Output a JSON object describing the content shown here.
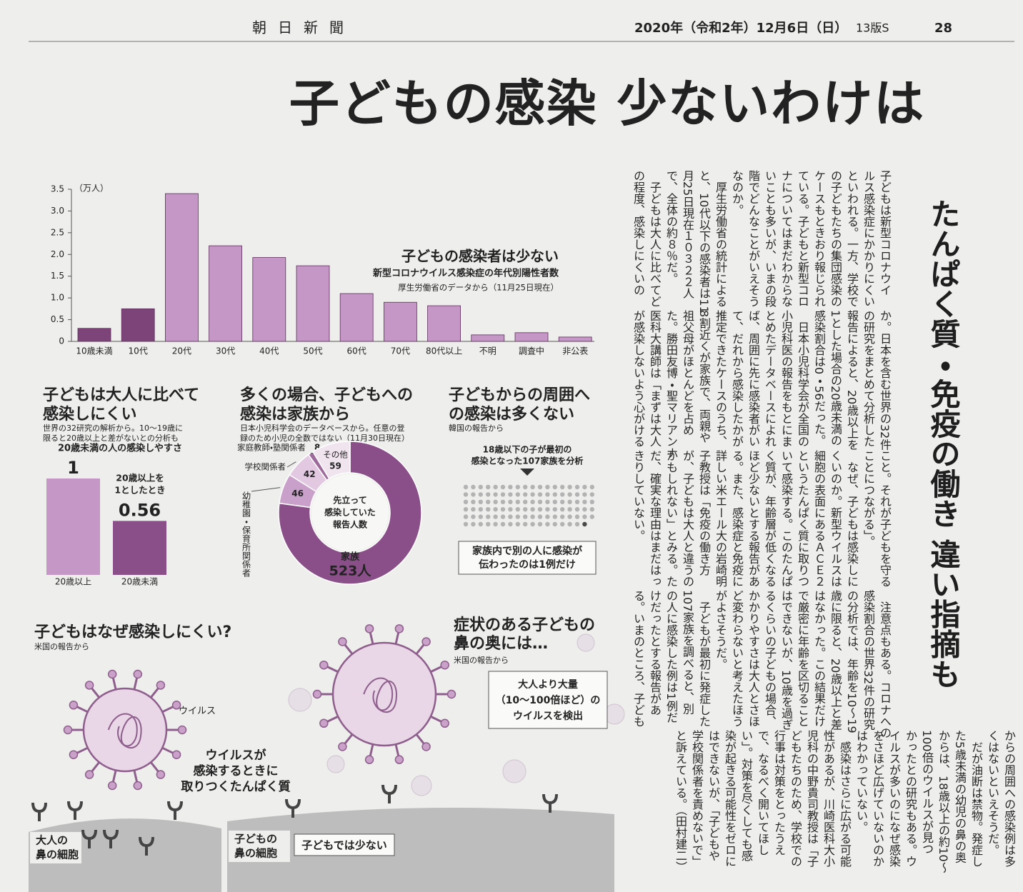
{
  "header": {
    "paper": "朝日新聞",
    "date": "2020年（令和2年）12月6日（日）",
    "edition": "13版S",
    "page": "28"
  },
  "headline": "子どもの感染 少ないわけは",
  "subheadline": "たんぱく質・免疫の働き 違い指摘も",
  "age_chart": {
    "type": "bar",
    "title": "子どもの感染者は少ない",
    "subtitle": "新型コロナウイルス感染症の年代別陽性者数",
    "source": "厚生労働省のデータから（11月25日現在）",
    "unit": "（万人）",
    "categories": [
      "10歳未満",
      "10代",
      "20代",
      "30代",
      "40代",
      "50代",
      "60代",
      "70代",
      "80代以上",
      "不明",
      "調査中",
      "非公表"
    ],
    "values": [
      0.3,
      0.75,
      3.4,
      2.2,
      1.93,
      1.74,
      1.1,
      0.9,
      0.82,
      0.15,
      0.2,
      0.1
    ],
    "colors": [
      "#7d4479",
      "#7d4479",
      "#c597c6",
      "#c597c6",
      "#c597c6",
      "#c597c6",
      "#c597c6",
      "#c597c6",
      "#c597c6",
      "#c597c6",
      "#c597c6",
      "#c597c6"
    ],
    "ylim": [
      0,
      3.5
    ],
    "yticks": [
      0,
      0.5,
      {
        "value": 1,
        "label": "1.0"
      },
      1.5,
      {
        "value": 2,
        "label": "2.0"
      },
      2.5,
      {
        "value": 3,
        "label": "3.0"
      },
      3.5
    ]
  },
  "ratio_chart": {
    "type": "bar",
    "title": [
      "子どもは大人に比べて",
      "感染しにくい"
    ],
    "note": [
      "世界の32研究の解析から。10～19歳に",
      "限ると20歳以上と差がないとの分析も"
    ],
    "subtitle": "20歳未満の人の感染しやすさ",
    "annotation": [
      "20歳以上を",
      "1としたとき"
    ],
    "categories": [
      "20歳以上",
      "20歳未満"
    ],
    "values": [
      1,
      0.56
    ],
    "colors": [
      "#c597c6",
      "#8a4f88"
    ],
    "ylim": [
      0,
      1
    ]
  },
  "source_chart": {
    "type": "pie",
    "title": [
      "多くの場合、子どもへの",
      "感染は家族から"
    ],
    "note": [
      "日本小児科学会のデータベースから。任意の登",
      "録のため小児の全数ではない（11月30日現在）"
    ],
    "center_label": [
      "先立って",
      "感染していた",
      "報告人数"
    ],
    "categories": [
      "家族",
      "幼稚園・保育所関係者",
      "学校関係者",
      "家庭教師・塾関係者",
      "その他"
    ],
    "values": [
      523,
      46,
      42,
      8,
      59
    ],
    "value_labels": [
      "523人",
      "46",
      "42",
      "8",
      "59"
    ],
    "colors": [
      "#8a4f88",
      "#c9a0c9",
      "#e2c8e1",
      "#9d6a9b",
      "#f0e4ef"
    ]
  },
  "spread_chart": {
    "type": "dot",
    "title": [
      "子どもからの周囲へ",
      "の感染は多くない"
    ],
    "source": "韓国の報告から",
    "box_label": [
      "18歳以下の子が最初の",
      "感染となった107家族を分析"
    ],
    "families": 107,
    "transmitted": 1,
    "caption": [
      "家族内で別の人に感染が",
      "伝わったのは1例だけ"
    ],
    "color": "#b3b3b3",
    "highlight_color": "#4a4a4a"
  },
  "illustrations": {
    "left": {
      "title": "子どもはなぜ感染しにくい?",
      "source": "米国の報告から",
      "virus": "ウイルス",
      "protein": [
        "ウイルスが",
        "感染するときに",
        "取りつくたんぱく質"
      ],
      "adult_cell": [
        "大人の",
        "鼻の細胞"
      ],
      "child_cell": [
        "子どもの",
        "鼻の細胞"
      ],
      "child_note": "子どもでは少ない"
    },
    "right": {
      "title": [
        "症状のある子どもの",
        "鼻の奥には…"
      ],
      "source": "米国の報告から",
      "box": [
        "大人より大量",
        "（10～100倍ほど）の",
        "ウイルスを検出"
      ]
    }
  },
  "article": {
    "bands": [
      [
        "子どもは新型コロナウイ",
        "ルス感染症にかかりにくい",
        "といわれる。一方、学校で",
        "の子どもたちの集団感染の",
        "ケースもときおり報じられ",
        "ている。子どもと新型コロ",
        "ナについてはまだわからな",
        "いことも多いが、いまの段",
        "階でどんなことがいえそう",
        "なのか。",
        "　厚生労働省の統計による",
        "と、10代以下の感染者は11",
        "月25日現在１０３２２人",
        "で、全体の約８％だ。",
        "　子どもは大人に比べてど",
        "の程度、感染しにくいの"
      ],
      [
        "か。日本を含む世界の32件",
        "の研究をまとめて分析した",
        "報告によると、20歳以上を",
        "1とした場合の20歳未満の",
        "感染割合は0・56だった。",
        "　日本小児科学会が全国の",
        "小児科医の報告をもとにま",
        "とめたデータベースによれ",
        "ば、周囲に先に感染者がい",
        "て、だれから感染したかが",
        "推定できたケースのうち、",
        "8割近くが家族で、両親や",
        "祖父母がほとんどを占め",
        "た。勝田友博・聖マリアンナ",
        "医科大講師は「まずは大人",
        "が感染しないよう心がける"
      ],
      [
        "こと。それが子どもを守る",
        "ことにつながる」。",
        "　なぜ、子どもは感染しに",
        "くいのか。新型ウイルスは",
        "細胞の表面にあるＡＣＥ２",
        "というたんぱく質に取りつ",
        "いて感染する。このたんぱ",
        "く質が、年齢層が低くなる",
        "ほど少ないとする報告があ",
        "る。また、感染症と免疫に",
        "詳しい米エール大の岩崎明",
        "子教授は「免疫の働き方",
        "が、子どもは大人と違うの",
        "かもしれない」とみる。た",
        "だ、確実な理由はまだはっ",
        "きりしていない。"
      ],
      [
        "　注意点もある。コロナへの",
        "感染割合の世界32件の研究",
        "の分析では、年齢を10～19",
        "歳に限ると、20歳以上と差",
        "はなかった。この結果だけ",
        "で厳密に年齢を区切ること",
        "はできないが、10歳を過ぎ",
        "るくらいの子どもの場合、",
        "かかりやすさは大人とさほ",
        "ど変わらないと考えたほう",
        "がよさそうだ。",
        "　子どもが最初に発症した",
        "107家族を調べると、別",
        "の人に感染した例は1例だ",
        "けだったとする報告があ",
        "る。いまのところ、子ども"
      ],
      [
        "からの周囲への感染例は多",
        "くはないといえそうだ。",
        "　だが油断は禁物。発症し",
        "た5歳未満の幼児の鼻の奥",
        "からは、18歳以上の約10～",
        "100倍のウイルスが見つ",
        "かったとの研究もある。ウ",
        "イルスが多いのになぜ感染",
        "をさほど広げていないのか",
        "はわかっていない。",
        "　感染はさらに広がる可能",
        "性があるが、川崎医科大小",
        "児科の中野貴司教授は「子",
        "どもたちのため、学校での",
        "行事は対策をとったうえ",
        "で、なるべく開いてほし",
        "い」。対策を尽くしても感",
        "染が起きる可能性をゼロに",
        "はできないが、「子どもや",
        "学校関係者を責めないで」",
        "と訴えている。（田村建二）"
      ]
    ]
  }
}
